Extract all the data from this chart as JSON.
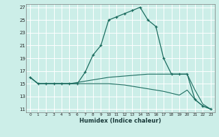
{
  "xlabel": "Humidex (Indice chaleur)",
  "bg_color": "#cceee8",
  "grid_color": "#ffffff",
  "line_color": "#1a6b5e",
  "xlim": [
    -0.5,
    23.5
  ],
  "ylim": [
    10.5,
    27.5
  ],
  "yticks": [
    11,
    13,
    15,
    17,
    19,
    21,
    23,
    25,
    27
  ],
  "xticks": [
    0,
    1,
    2,
    3,
    4,
    5,
    6,
    7,
    8,
    9,
    10,
    11,
    12,
    13,
    14,
    15,
    16,
    17,
    18,
    19,
    20,
    21,
    22,
    23
  ],
  "curve1_x": [
    0,
    1,
    2,
    3,
    4,
    5,
    6,
    7,
    8,
    9,
    10,
    11,
    12,
    13,
    14,
    15,
    16,
    17,
    18,
    19,
    20,
    21,
    22,
    23
  ],
  "curve1_y": [
    16.0,
    15.0,
    15.0,
    15.0,
    15.0,
    15.0,
    15.0,
    16.8,
    19.5,
    21.0,
    25.0,
    25.5,
    26.0,
    26.5,
    27.0,
    25.0,
    24.0,
    19.0,
    16.5,
    16.5,
    16.5,
    12.5,
    11.5,
    11.0
  ],
  "curve2_x": [
    0,
    1,
    2,
    3,
    4,
    5,
    6,
    7,
    8,
    9,
    10,
    11,
    12,
    13,
    14,
    15,
    16,
    17,
    18,
    19,
    20,
    21,
    22,
    23
  ],
  "curve2_y": [
    16.0,
    15.0,
    15.0,
    15.0,
    15.0,
    15.0,
    15.2,
    15.4,
    15.6,
    15.8,
    16.0,
    16.1,
    16.2,
    16.3,
    16.4,
    16.5,
    16.5,
    16.5,
    16.5,
    16.5,
    16.5,
    14.0,
    11.8,
    11.0
  ],
  "curve3_x": [
    0,
    1,
    2,
    3,
    4,
    5,
    6,
    7,
    8,
    9,
    10,
    11,
    12,
    13,
    14,
    15,
    16,
    17,
    18,
    19,
    20,
    21,
    22,
    23
  ],
  "curve3_y": [
    16.0,
    15.0,
    15.0,
    15.0,
    15.0,
    15.0,
    15.0,
    15.0,
    15.0,
    15.0,
    15.0,
    14.9,
    14.8,
    14.6,
    14.4,
    14.2,
    14.0,
    13.8,
    13.5,
    13.2,
    14.0,
    12.5,
    11.5,
    11.0
  ]
}
